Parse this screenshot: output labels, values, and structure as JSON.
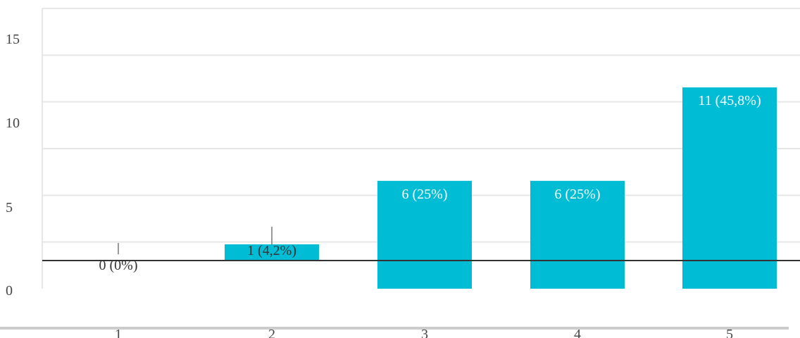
{
  "chart_data": {
    "type": "bar",
    "categories": [
      "1",
      "2",
      "3",
      "4",
      "5"
    ],
    "values": [
      0,
      1,
      6,
      6,
      11
    ],
    "labels": [
      "0 (0%)",
      "1 (4,2%)",
      "6 (25%)",
      "6 (25%)",
      "11 (45,8%)"
    ],
    "yticks": [
      "0",
      "5",
      "10",
      "15"
    ],
    "ylim": [
      0,
      15
    ],
    "grid": true,
    "colors": {
      "bar": "#00bcd4",
      "grid": "#e6e6e6",
      "axis": "#333333",
      "label_light": "#ffffff",
      "label_dark": "#333333"
    },
    "title": "",
    "xlabel": "",
    "ylabel": ""
  }
}
